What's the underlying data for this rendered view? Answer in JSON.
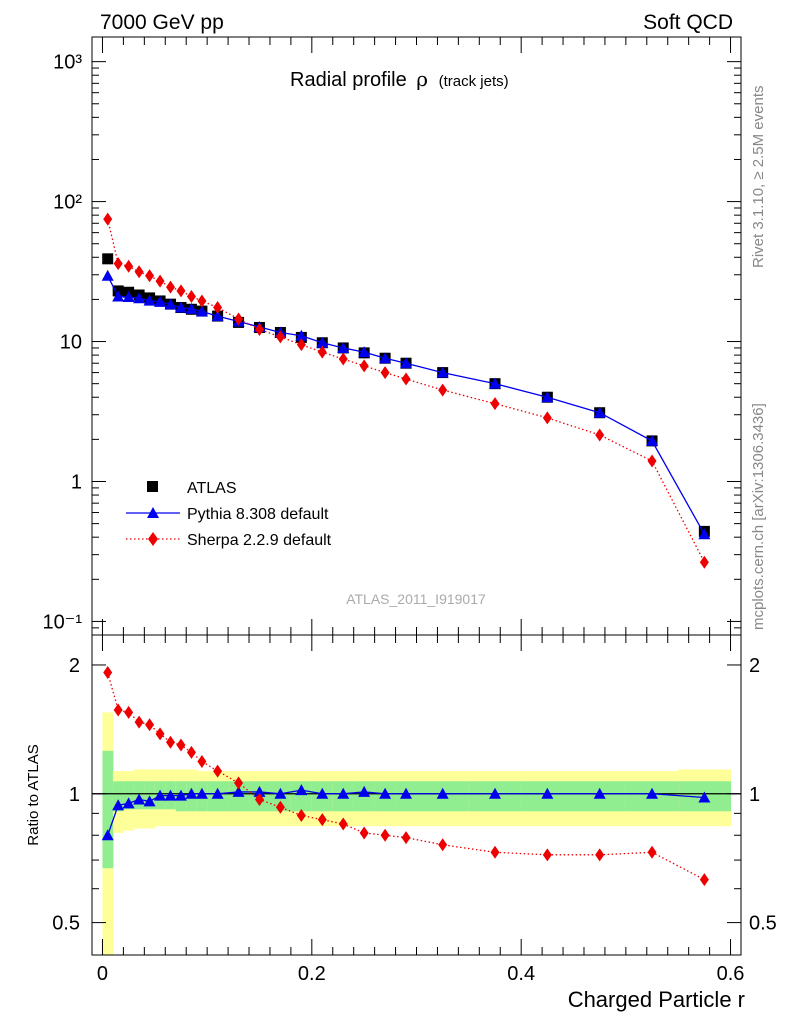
{
  "header": {
    "left": "7000 GeV pp",
    "right": "Soft QCD"
  },
  "side_labels": {
    "rivet": "Rivet 3.1.10, ≥ 2.5M events",
    "arxiv": "mcplots.cern.ch [arXiv:1306.3436]"
  },
  "watermark": "ATLAS_2011_I919017",
  "chart_data": [
    {
      "type": "scatter",
      "title": "Radial profile",
      "title_symbol": "ρ",
      "title_suffix": "(track jets)",
      "yscale": "log",
      "ylim": [
        0.08,
        1500
      ],
      "xlim": [
        -0.01,
        0.61
      ],
      "y_tick_labels": [
        "10⁻¹",
        "1",
        "10",
        "10²",
        "10³"
      ],
      "y_tick_values": [
        0.1,
        1,
        10,
        100,
        1000
      ],
      "legend_position": "bottom-left",
      "series": [
        {
          "name": "ATLAS",
          "color": "#000000",
          "marker": "square",
          "x": [
            0.005,
            0.015,
            0.025,
            0.035,
            0.045,
            0.055,
            0.065,
            0.075,
            0.085,
            0.095,
            0.11,
            0.13,
            0.15,
            0.17,
            0.19,
            0.21,
            0.23,
            0.25,
            0.27,
            0.29,
            0.325,
            0.375,
            0.425,
            0.475,
            0.525,
            0.575
          ],
          "y": [
            39,
            23,
            22.5,
            21.5,
            20.5,
            19.5,
            18.5,
            17.5,
            17,
            16.5,
            15.2,
            13.7,
            12.6,
            11.6,
            10.7,
            9.8,
            9.0,
            8.3,
            7.6,
            7.0,
            6.0,
            5.0,
            4.0,
            3.1,
            1.95,
            0.44
          ]
        },
        {
          "name": "Pythia 8.308 default",
          "color": "#0000ee",
          "marker": "triangle",
          "line": "solid",
          "x": [
            0.005,
            0.015,
            0.025,
            0.035,
            0.045,
            0.055,
            0.065,
            0.075,
            0.085,
            0.095,
            0.11,
            0.13,
            0.15,
            0.17,
            0.19,
            0.21,
            0.23,
            0.25,
            0.27,
            0.29,
            0.325,
            0.375,
            0.425,
            0.475,
            0.525,
            0.575
          ],
          "y": [
            29.5,
            21,
            20.8,
            20.4,
            19.6,
            19.2,
            18.4,
            17.5,
            17.1,
            16.4,
            15.2,
            13.9,
            12.7,
            11.6,
            11.0,
            9.8,
            9.0,
            8.4,
            7.6,
            7.0,
            6.0,
            5.0,
            4.0,
            3.1,
            1.95,
            0.42
          ]
        },
        {
          "name": "Sherpa 2.2.9 default",
          "color": "#ee0000",
          "marker": "diamond",
          "line": "dotted",
          "x": [
            0.005,
            0.015,
            0.025,
            0.035,
            0.045,
            0.055,
            0.065,
            0.075,
            0.085,
            0.095,
            0.11,
            0.13,
            0.15,
            0.17,
            0.19,
            0.21,
            0.23,
            0.25,
            0.27,
            0.29,
            0.325,
            0.375,
            0.425,
            0.475,
            0.525,
            0.575
          ],
          "y": [
            75,
            36,
            34.5,
            31.5,
            29.5,
            27,
            24.5,
            23,
            21,
            19.5,
            17.5,
            14.5,
            12.2,
            10.8,
            9.5,
            8.4,
            7.5,
            6.7,
            6.0,
            5.4,
            4.5,
            3.6,
            2.85,
            2.15,
            1.4,
            0.265
          ]
        }
      ]
    },
    {
      "type": "scatter",
      "ylabel": "Ratio to ATLAS",
      "xlabel": "Charged Particle r",
      "yscale": "log",
      "ylim": [
        0.42,
        2.35
      ],
      "xlim": [
        -0.01,
        0.61
      ],
      "x_tick_labels": [
        "0",
        "0.2",
        "0.4",
        "0.6"
      ],
      "x_tick_values": [
        0,
        0.2,
        0.4,
        0.6
      ],
      "y_tick_labels": [
        "0.5",
        "1",
        "2"
      ],
      "y_tick_values": [
        0.5,
        1,
        2
      ],
      "bands": {
        "x_edges": [
          0,
          0.01,
          0.02,
          0.03,
          0.04,
          0.05,
          0.06,
          0.07,
          0.08,
          0.09,
          0.1,
          0.12,
          0.14,
          0.16,
          0.18,
          0.2,
          0.22,
          0.24,
          0.26,
          0.28,
          0.3,
          0.35,
          0.4,
          0.45,
          0.5,
          0.55,
          0.6
        ],
        "inner_lo": [
          0.67,
          0.91,
          0.92,
          0.92,
          0.92,
          0.92,
          0.92,
          0.91,
          0.91,
          0.91,
          0.91,
          0.91,
          0.91,
          0.91,
          0.91,
          0.91,
          0.91,
          0.91,
          0.91,
          0.91,
          0.91,
          0.91,
          0.91,
          0.91,
          0.91,
          0.91
        ],
        "inner_hi": [
          1.26,
          1.07,
          1.07,
          1.07,
          1.07,
          1.07,
          1.07,
          1.07,
          1.07,
          1.07,
          1.07,
          1.07,
          1.07,
          1.07,
          1.07,
          1.07,
          1.07,
          1.07,
          1.07,
          1.07,
          1.07,
          1.07,
          1.07,
          1.07,
          1.07,
          1.07
        ],
        "outer_lo": [
          0.39,
          0.81,
          0.82,
          0.83,
          0.83,
          0.84,
          0.84,
          0.84,
          0.84,
          0.84,
          0.84,
          0.84,
          0.84,
          0.84,
          0.84,
          0.84,
          0.84,
          0.84,
          0.84,
          0.84,
          0.84,
          0.84,
          0.84,
          0.84,
          0.84,
          0.84
        ],
        "outer_hi": [
          1.55,
          1.13,
          1.13,
          1.14,
          1.14,
          1.14,
          1.14,
          1.14,
          1.14,
          1.13,
          1.13,
          1.13,
          1.13,
          1.13,
          1.13,
          1.13,
          1.13,
          1.13,
          1.13,
          1.13,
          1.13,
          1.13,
          1.13,
          1.13,
          1.13,
          1.14
        ]
      },
      "series": [
        {
          "name": "Pythia 8.308 default",
          "color": "#0000ee",
          "marker": "triangle",
          "line": "solid",
          "x": [
            0.005,
            0.015,
            0.025,
            0.035,
            0.045,
            0.055,
            0.065,
            0.075,
            0.085,
            0.095,
            0.11,
            0.13,
            0.15,
            0.17,
            0.19,
            0.21,
            0.23,
            0.25,
            0.27,
            0.29,
            0.325,
            0.375,
            0.425,
            0.475,
            0.525,
            0.575
          ],
          "y": [
            0.8,
            0.94,
            0.95,
            0.97,
            0.96,
            0.99,
            0.99,
            0.99,
            1.0,
            1.0,
            1.0,
            1.01,
            1.01,
            1.0,
            1.02,
            1.0,
            1.0,
            1.01,
            1.0,
            1.0,
            1.0,
            1.0,
            1.0,
            1.0,
            1.0,
            0.98
          ]
        },
        {
          "name": "Sherpa 2.2.9 default",
          "color": "#ee0000",
          "marker": "diamond",
          "line": "dotted",
          "x": [
            0.005,
            0.015,
            0.025,
            0.035,
            0.045,
            0.055,
            0.065,
            0.075,
            0.085,
            0.095,
            0.11,
            0.13,
            0.15,
            0.17,
            0.19,
            0.21,
            0.23,
            0.25,
            0.27,
            0.29,
            0.325,
            0.375,
            0.425,
            0.475,
            0.525,
            0.575
          ],
          "y": [
            1.92,
            1.57,
            1.55,
            1.47,
            1.45,
            1.38,
            1.32,
            1.3,
            1.25,
            1.19,
            1.13,
            1.06,
            0.97,
            0.93,
            0.89,
            0.87,
            0.85,
            0.81,
            0.8,
            0.79,
            0.76,
            0.73,
            0.72,
            0.72,
            0.73,
            0.63
          ]
        }
      ]
    }
  ]
}
